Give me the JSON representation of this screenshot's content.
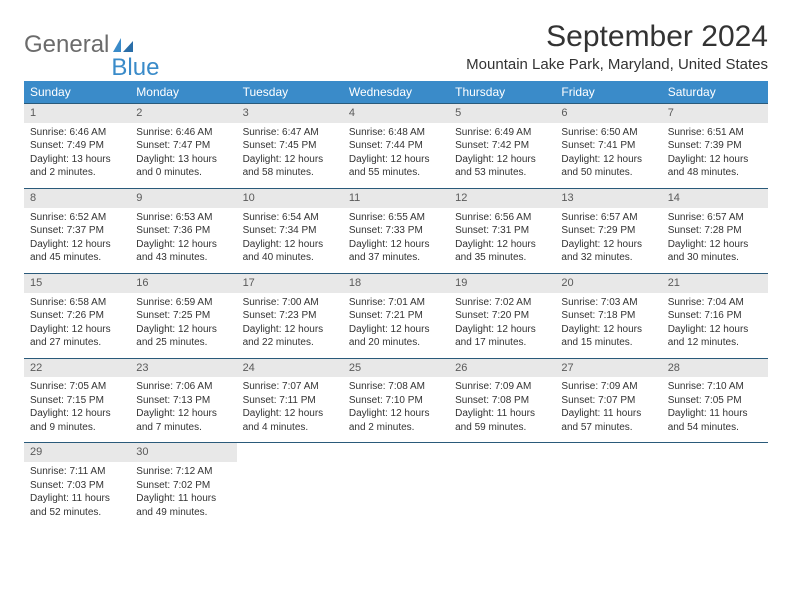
{
  "brand": {
    "name1": "General",
    "name2": "Blue"
  },
  "title": "September 2024",
  "location": "Mountain Lake Park, Maryland, United States",
  "colors": {
    "header_bg": "#3a8bc9",
    "header_text": "#ffffff",
    "daynum_bg": "#e8e8e8",
    "daynum_text": "#5a5a5a",
    "border": "#2a5a7a",
    "text": "#333333"
  },
  "day_headers": [
    "Sunday",
    "Monday",
    "Tuesday",
    "Wednesday",
    "Thursday",
    "Friday",
    "Saturday"
  ],
  "weeks": [
    [
      {
        "n": "1",
        "sr": "Sunrise: 6:46 AM",
        "ss": "Sunset: 7:49 PM",
        "dl1": "Daylight: 13 hours",
        "dl2": "and 2 minutes."
      },
      {
        "n": "2",
        "sr": "Sunrise: 6:46 AM",
        "ss": "Sunset: 7:47 PM",
        "dl1": "Daylight: 13 hours",
        "dl2": "and 0 minutes."
      },
      {
        "n": "3",
        "sr": "Sunrise: 6:47 AM",
        "ss": "Sunset: 7:45 PM",
        "dl1": "Daylight: 12 hours",
        "dl2": "and 58 minutes."
      },
      {
        "n": "4",
        "sr": "Sunrise: 6:48 AM",
        "ss": "Sunset: 7:44 PM",
        "dl1": "Daylight: 12 hours",
        "dl2": "and 55 minutes."
      },
      {
        "n": "5",
        "sr": "Sunrise: 6:49 AM",
        "ss": "Sunset: 7:42 PM",
        "dl1": "Daylight: 12 hours",
        "dl2": "and 53 minutes."
      },
      {
        "n": "6",
        "sr": "Sunrise: 6:50 AM",
        "ss": "Sunset: 7:41 PM",
        "dl1": "Daylight: 12 hours",
        "dl2": "and 50 minutes."
      },
      {
        "n": "7",
        "sr": "Sunrise: 6:51 AM",
        "ss": "Sunset: 7:39 PM",
        "dl1": "Daylight: 12 hours",
        "dl2": "and 48 minutes."
      }
    ],
    [
      {
        "n": "8",
        "sr": "Sunrise: 6:52 AM",
        "ss": "Sunset: 7:37 PM",
        "dl1": "Daylight: 12 hours",
        "dl2": "and 45 minutes."
      },
      {
        "n": "9",
        "sr": "Sunrise: 6:53 AM",
        "ss": "Sunset: 7:36 PM",
        "dl1": "Daylight: 12 hours",
        "dl2": "and 43 minutes."
      },
      {
        "n": "10",
        "sr": "Sunrise: 6:54 AM",
        "ss": "Sunset: 7:34 PM",
        "dl1": "Daylight: 12 hours",
        "dl2": "and 40 minutes."
      },
      {
        "n": "11",
        "sr": "Sunrise: 6:55 AM",
        "ss": "Sunset: 7:33 PM",
        "dl1": "Daylight: 12 hours",
        "dl2": "and 37 minutes."
      },
      {
        "n": "12",
        "sr": "Sunrise: 6:56 AM",
        "ss": "Sunset: 7:31 PM",
        "dl1": "Daylight: 12 hours",
        "dl2": "and 35 minutes."
      },
      {
        "n": "13",
        "sr": "Sunrise: 6:57 AM",
        "ss": "Sunset: 7:29 PM",
        "dl1": "Daylight: 12 hours",
        "dl2": "and 32 minutes."
      },
      {
        "n": "14",
        "sr": "Sunrise: 6:57 AM",
        "ss": "Sunset: 7:28 PM",
        "dl1": "Daylight: 12 hours",
        "dl2": "and 30 minutes."
      }
    ],
    [
      {
        "n": "15",
        "sr": "Sunrise: 6:58 AM",
        "ss": "Sunset: 7:26 PM",
        "dl1": "Daylight: 12 hours",
        "dl2": "and 27 minutes."
      },
      {
        "n": "16",
        "sr": "Sunrise: 6:59 AM",
        "ss": "Sunset: 7:25 PM",
        "dl1": "Daylight: 12 hours",
        "dl2": "and 25 minutes."
      },
      {
        "n": "17",
        "sr": "Sunrise: 7:00 AM",
        "ss": "Sunset: 7:23 PM",
        "dl1": "Daylight: 12 hours",
        "dl2": "and 22 minutes."
      },
      {
        "n": "18",
        "sr": "Sunrise: 7:01 AM",
        "ss": "Sunset: 7:21 PM",
        "dl1": "Daylight: 12 hours",
        "dl2": "and 20 minutes."
      },
      {
        "n": "19",
        "sr": "Sunrise: 7:02 AM",
        "ss": "Sunset: 7:20 PM",
        "dl1": "Daylight: 12 hours",
        "dl2": "and 17 minutes."
      },
      {
        "n": "20",
        "sr": "Sunrise: 7:03 AM",
        "ss": "Sunset: 7:18 PM",
        "dl1": "Daylight: 12 hours",
        "dl2": "and 15 minutes."
      },
      {
        "n": "21",
        "sr": "Sunrise: 7:04 AM",
        "ss": "Sunset: 7:16 PM",
        "dl1": "Daylight: 12 hours",
        "dl2": "and 12 minutes."
      }
    ],
    [
      {
        "n": "22",
        "sr": "Sunrise: 7:05 AM",
        "ss": "Sunset: 7:15 PM",
        "dl1": "Daylight: 12 hours",
        "dl2": "and 9 minutes."
      },
      {
        "n": "23",
        "sr": "Sunrise: 7:06 AM",
        "ss": "Sunset: 7:13 PM",
        "dl1": "Daylight: 12 hours",
        "dl2": "and 7 minutes."
      },
      {
        "n": "24",
        "sr": "Sunrise: 7:07 AM",
        "ss": "Sunset: 7:11 PM",
        "dl1": "Daylight: 12 hours",
        "dl2": "and 4 minutes."
      },
      {
        "n": "25",
        "sr": "Sunrise: 7:08 AM",
        "ss": "Sunset: 7:10 PM",
        "dl1": "Daylight: 12 hours",
        "dl2": "and 2 minutes."
      },
      {
        "n": "26",
        "sr": "Sunrise: 7:09 AM",
        "ss": "Sunset: 7:08 PM",
        "dl1": "Daylight: 11 hours",
        "dl2": "and 59 minutes."
      },
      {
        "n": "27",
        "sr": "Sunrise: 7:09 AM",
        "ss": "Sunset: 7:07 PM",
        "dl1": "Daylight: 11 hours",
        "dl2": "and 57 minutes."
      },
      {
        "n": "28",
        "sr": "Sunrise: 7:10 AM",
        "ss": "Sunset: 7:05 PM",
        "dl1": "Daylight: 11 hours",
        "dl2": "and 54 minutes."
      }
    ],
    [
      {
        "n": "29",
        "sr": "Sunrise: 7:11 AM",
        "ss": "Sunset: 7:03 PM",
        "dl1": "Daylight: 11 hours",
        "dl2": "and 52 minutes."
      },
      {
        "n": "30",
        "sr": "Sunrise: 7:12 AM",
        "ss": "Sunset: 7:02 PM",
        "dl1": "Daylight: 11 hours",
        "dl2": "and 49 minutes."
      },
      null,
      null,
      null,
      null,
      null
    ]
  ]
}
